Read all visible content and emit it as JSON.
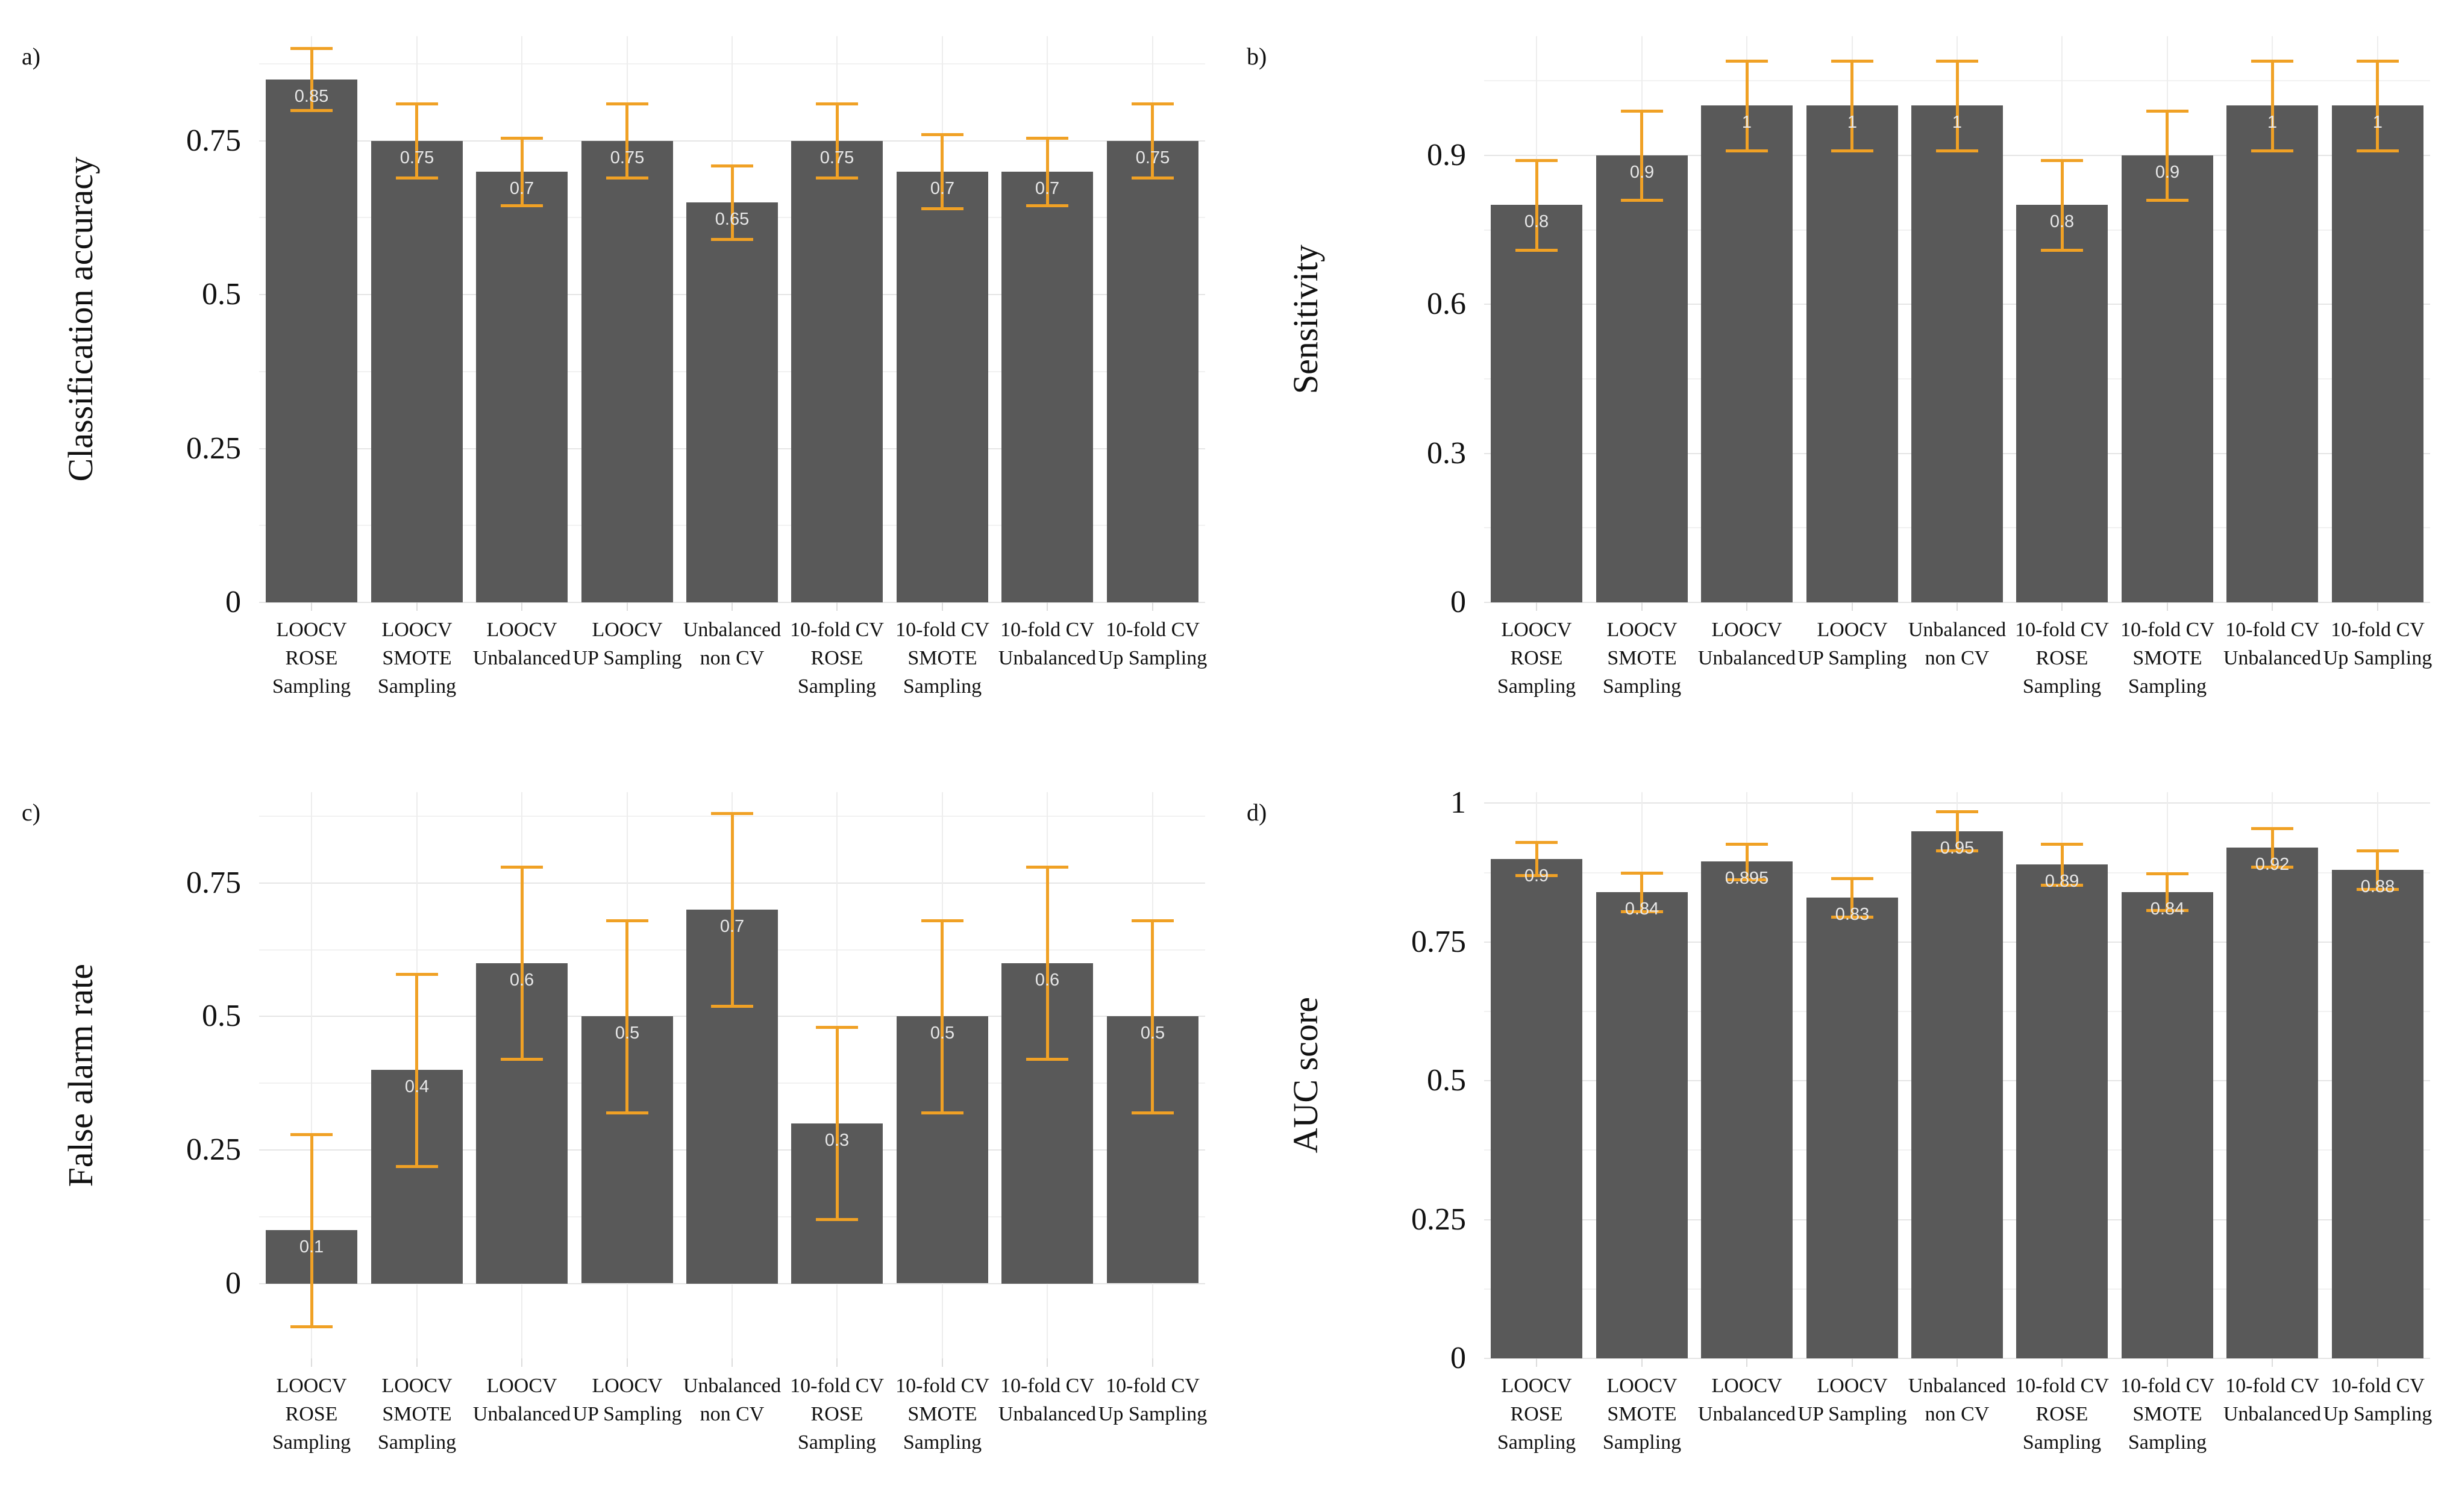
{
  "figure": {
    "background": "#ffffff",
    "bar_color": "#595959",
    "error_bar_color": "#f0a125",
    "bar_label_color": "#e8e8e8",
    "grid_major_color": "#e5e5e5",
    "grid_minor_color": "#f1f1f1",
    "category_lines": [
      [
        "LOOCV",
        "ROSE",
        "Sampling"
      ],
      [
        "LOOCV",
        "SMOTE",
        "Sampling"
      ],
      [
        "LOOCV",
        "Unbalanced"
      ],
      [
        "LOOCV",
        "UP Sampling"
      ],
      [
        "Unbalanced",
        "non CV"
      ],
      [
        "10-fold CV",
        "ROSE",
        "Sampling"
      ],
      [
        "10-fold CV",
        "SMOTE",
        "Sampling"
      ],
      [
        "10-fold CV",
        "Unbalanced"
      ],
      [
        "10-fold CV",
        "Up Sampling"
      ]
    ]
  },
  "chart_data": [
    {
      "type": "bar",
      "panel_label": "a)",
      "title": "",
      "xlabel": "",
      "ylabel": "Classification accuracy",
      "legend": "none",
      "grid": "on",
      "categories": [
        "LOOCV ROSE Sampling",
        "LOOCV SMOTE Sampling",
        "LOOCV Unbalanced",
        "LOOCV UP Sampling",
        "Unbalanced non CV",
        "10-fold CV ROSE Sampling",
        "10-fold CV SMOTE Sampling",
        "10-fold CV Unbalanced",
        "10-fold CV Up Sampling"
      ],
      "values": [
        0.85,
        0.75,
        0.7,
        0.75,
        0.65,
        0.75,
        0.7,
        0.7,
        0.75
      ],
      "bar_labels": [
        "0.85",
        "0.75",
        "0.7",
        "0.75",
        "0.65",
        "0.75",
        "0.7",
        "0.7",
        "0.75"
      ],
      "errors": [
        0.05,
        0.06,
        0.055,
        0.06,
        0.06,
        0.06,
        0.06,
        0.055,
        0.06
      ],
      "yticks": [
        0,
        0.25,
        0.5,
        0.75
      ],
      "ytick_labels": [
        "0",
        "0.25",
        "0.5",
        "0.75"
      ],
      "minor_ticks": [
        0.125,
        0.375,
        0.625,
        0.875
      ],
      "ylim": [
        0,
        0.92
      ]
    },
    {
      "type": "bar",
      "panel_label": "b)",
      "title": "",
      "xlabel": "",
      "ylabel": "Sensitivity",
      "legend": "none",
      "grid": "on",
      "categories": [
        "LOOCV ROSE Sampling",
        "LOOCV SMOTE Sampling",
        "LOOCV Unbalanced",
        "LOOCV UP Sampling",
        "Unbalanced non CV",
        "10-fold CV ROSE Sampling",
        "10-fold CV SMOTE Sampling",
        "10-fold CV Unbalanced",
        "10-fold CV Up Sampling"
      ],
      "values": [
        0.8,
        0.9,
        1,
        1,
        1,
        0.8,
        0.9,
        1,
        1
      ],
      "bar_labels": [
        "0.8",
        "0.9",
        "1",
        "1",
        "1",
        "0.8",
        "0.9",
        "1",
        "1"
      ],
      "errors": [
        0.09,
        0.09,
        0.09,
        0.09,
        0.09,
        0.09,
        0.09,
        0.09,
        0.09
      ],
      "yticks": [
        0,
        0.3,
        0.6,
        0.9
      ],
      "ytick_labels": [
        "0",
        "0.3",
        "0.6",
        "0.9"
      ],
      "minor_ticks": [
        0.15,
        0.45,
        0.75,
        1.05
      ],
      "ylim": [
        0,
        1.14
      ]
    },
    {
      "type": "bar",
      "panel_label": "c)",
      "title": "",
      "xlabel": "",
      "ylabel": "False alarm rate",
      "legend": "none",
      "grid": "on",
      "categories": [
        "LOOCV ROSE Sampling",
        "LOOCV SMOTE Sampling",
        "LOOCV Unbalanced",
        "LOOCV UP Sampling",
        "Unbalanced non CV",
        "10-fold CV ROSE Sampling",
        "10-fold CV SMOTE Sampling",
        "10-fold CV Unbalanced",
        "10-fold CV Up Sampling"
      ],
      "values": [
        0.1,
        0.4,
        0.6,
        0.5,
        0.7,
        0.3,
        0.5,
        0.6,
        0.5
      ],
      "bar_labels": [
        "0.1",
        "0.4",
        "0.6",
        "0.5",
        "0.7",
        "0.3",
        "0.5",
        "0.6",
        "0.5"
      ],
      "errors": [
        0.18,
        0.18,
        0.18,
        0.18,
        0.18,
        0.18,
        0.18,
        0.18,
        0.18
      ],
      "yticks": [
        0,
        0.25,
        0.5,
        0.75
      ],
      "ytick_labels": [
        "0",
        "0.25",
        "0.5",
        "0.75"
      ],
      "minor_ticks": [
        0.125,
        0.375,
        0.625,
        0.875
      ],
      "ylim": [
        -0.14,
        0.92
      ]
    },
    {
      "type": "bar",
      "panel_label": "d)",
      "title": "",
      "xlabel": "",
      "ylabel": "AUC score",
      "legend": "none",
      "grid": "on",
      "categories": [
        "LOOCV ROSE Sampling",
        "LOOCV SMOTE Sampling",
        "LOOCV Unbalanced",
        "LOOCV UP Sampling",
        "Unbalanced non CV",
        "10-fold CV ROSE Sampling",
        "10-fold CV SMOTE Sampling",
        "10-fold CV Unbalanced",
        "10-fold CV Up Sampling"
      ],
      "values": [
        0.9,
        0.84,
        0.895,
        0.83,
        0.95,
        0.89,
        0.84,
        0.92,
        0.88
      ],
      "bar_labels": [
        "0.9",
        "0.84",
        "0.895",
        "0.83",
        "0.95",
        "0.89",
        "0.84",
        "0.92",
        "0.88"
      ],
      "errors": [
        0.03,
        0.035,
        0.032,
        0.035,
        0.035,
        0.037,
        0.033,
        0.035,
        0.035
      ],
      "yticks": [
        0,
        0.25,
        0.5,
        0.75,
        1
      ],
      "ytick_labels": [
        "0",
        "0.25",
        "0.5",
        "0.75",
        "1"
      ],
      "minor_ticks": [
        0.125,
        0.375,
        0.625,
        0.875
      ],
      "ylim": [
        0,
        1.02
      ]
    }
  ]
}
